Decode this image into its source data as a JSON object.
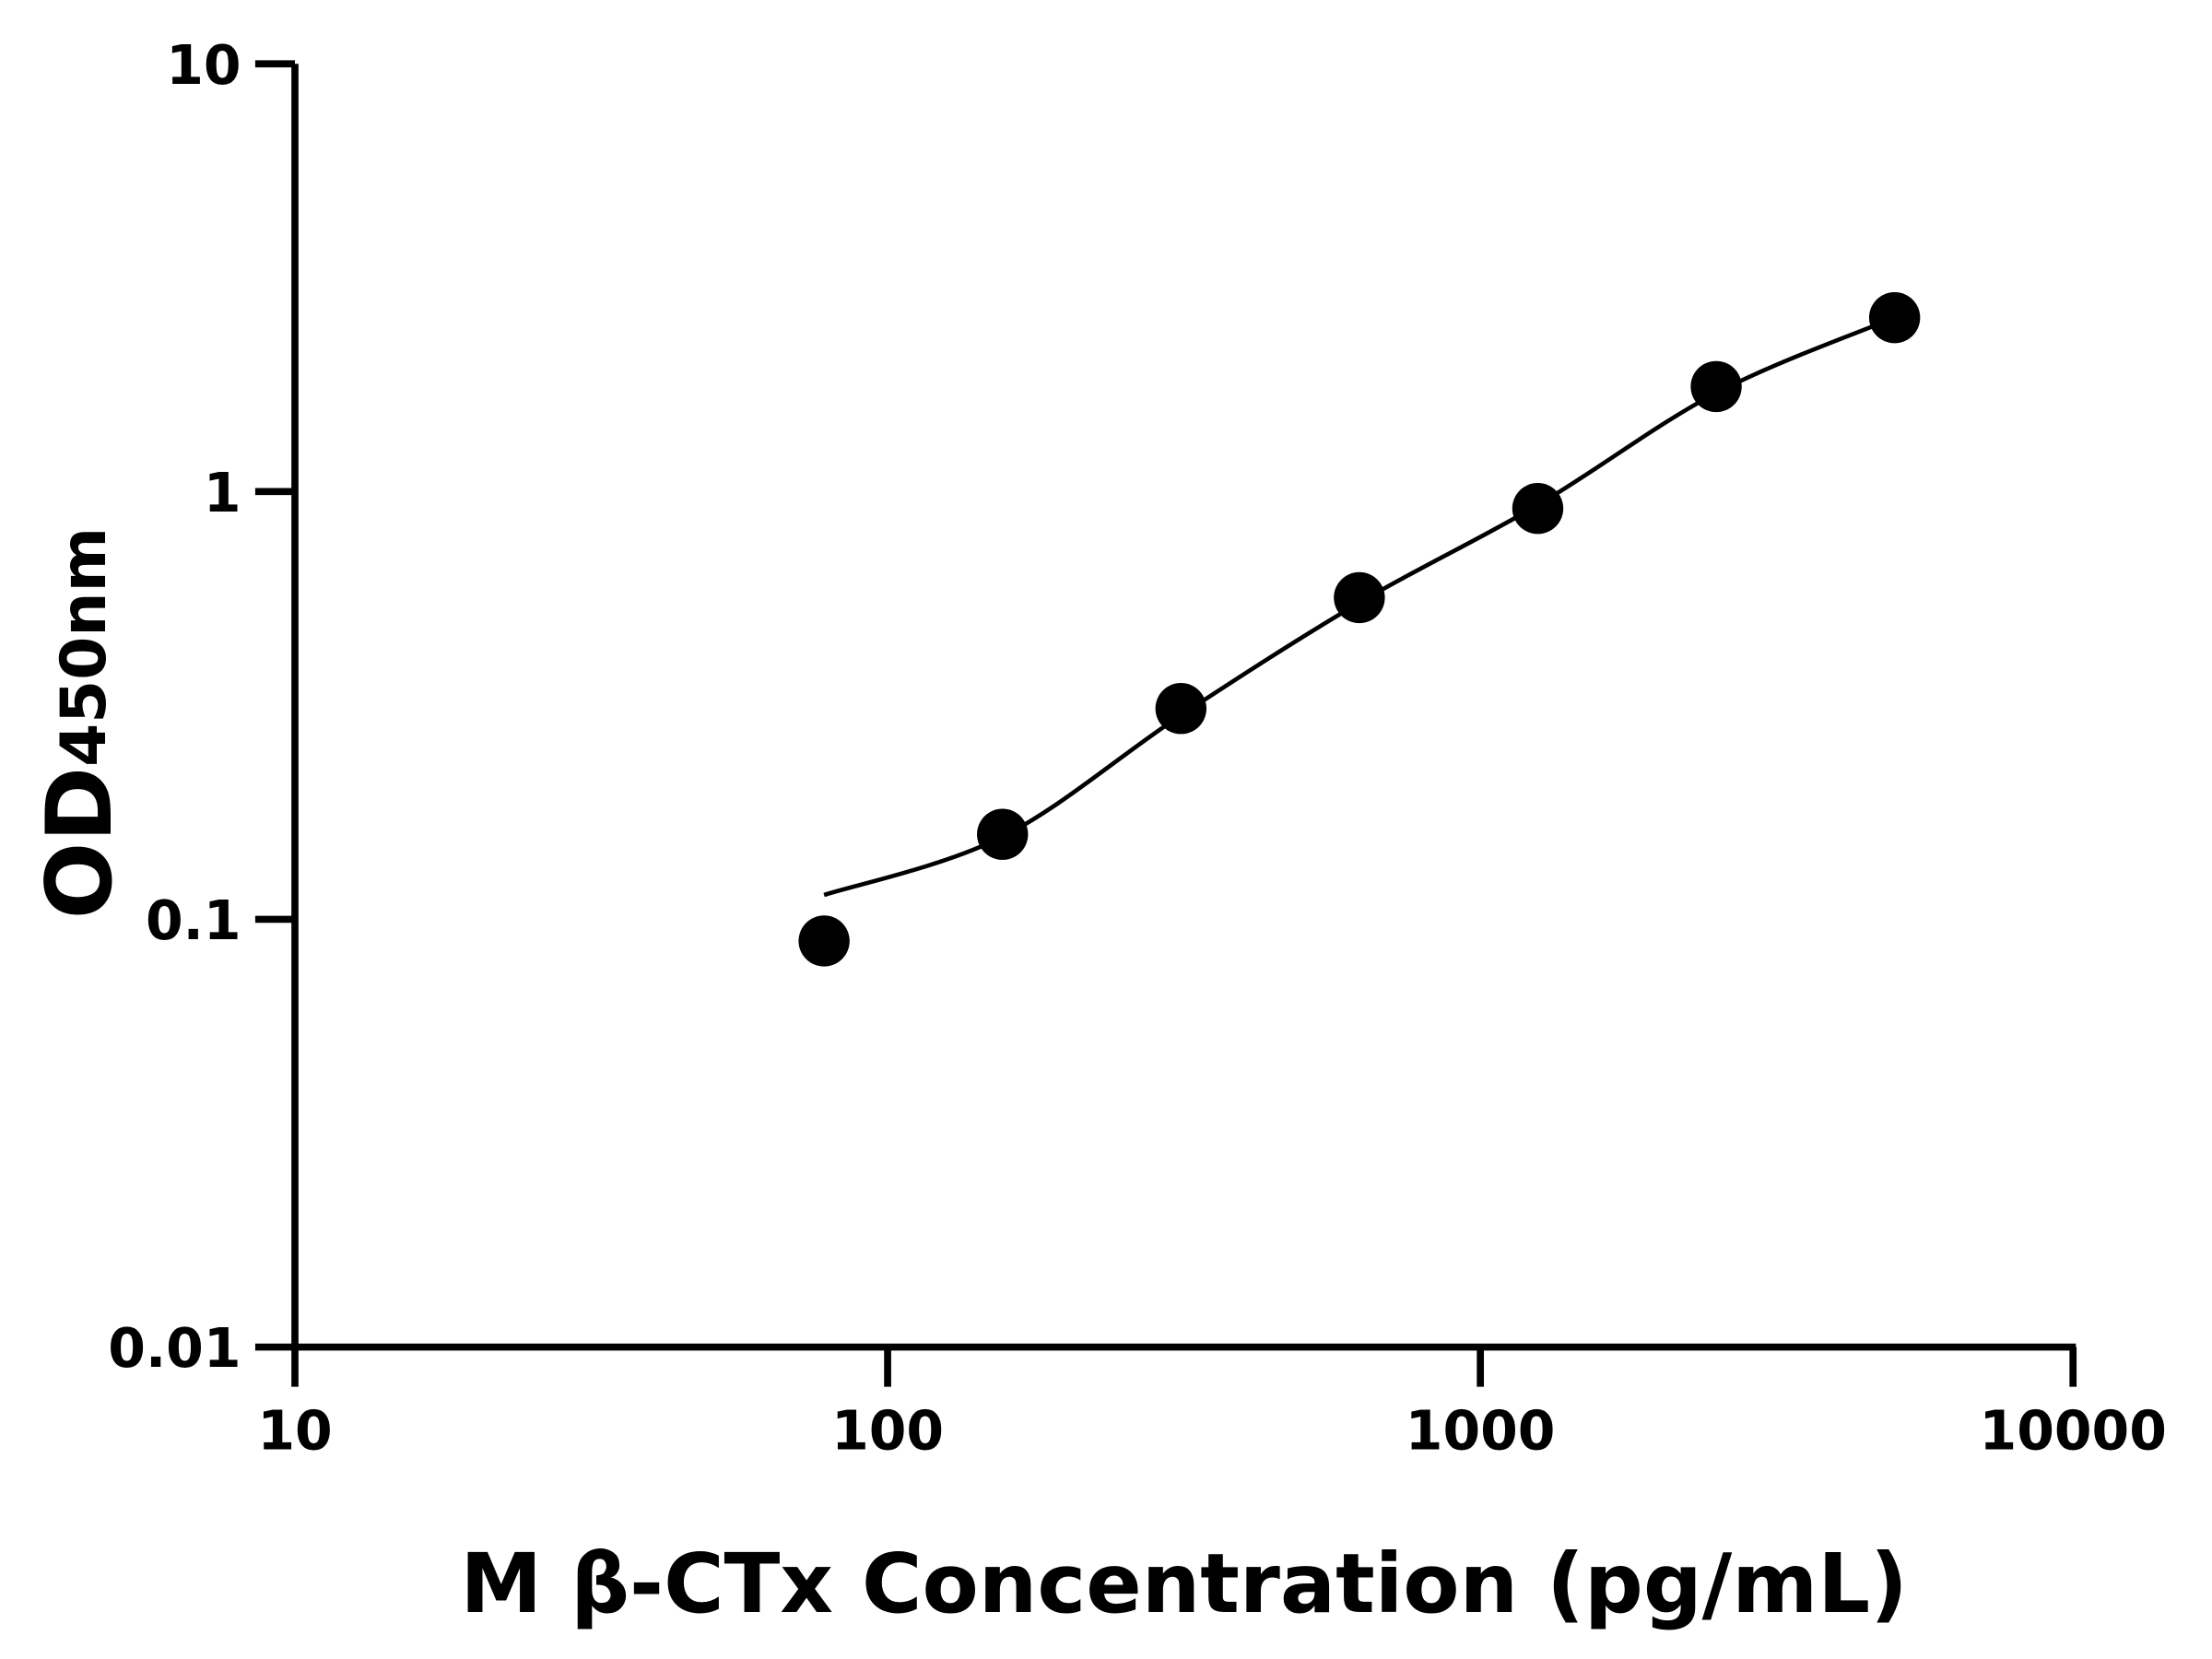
{
  "chart_data": {
    "type": "scatter",
    "title": "",
    "xlabel": "M β-CTx Concentration (pg/mL)",
    "ylabel_main": "OD",
    "ylabel_sub": "450nm",
    "x_scale": "log",
    "y_scale": "log",
    "xlim": [
      10,
      10000
    ],
    "ylim": [
      0.01,
      10
    ],
    "x_ticks": [
      "10",
      "100",
      "1000",
      "10000"
    ],
    "y_ticks": [
      "0.01",
      "0.1",
      "1",
      "10"
    ],
    "grid": false,
    "legend": "none",
    "points": {
      "x": [
        78.125,
        156.25,
        312.5,
        625,
        1250,
        2500,
        5000
      ],
      "y": [
        0.089,
        0.158,
        0.311,
        0.565,
        0.913,
        1.76,
        2.55
      ]
    },
    "fit_curve": {
      "x": [
        78.125,
        156.25,
        312.5,
        625,
        1250,
        2500,
        5000
      ],
      "y": [
        0.114,
        0.156,
        0.3,
        0.55,
        0.93,
        1.7,
        2.55
      ]
    },
    "colors": {
      "points": "#000000",
      "curve": "#000000",
      "axes": "#000000"
    }
  }
}
